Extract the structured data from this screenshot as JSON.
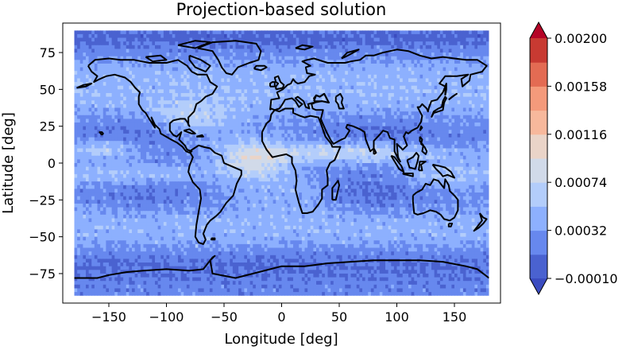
{
  "chart_data": {
    "type": "heatmap",
    "title": "Projection-based solution",
    "xlabel": "Longitude [deg]",
    "ylabel": "Latitude [deg]",
    "xlim": [
      -190,
      190
    ],
    "ylim": [
      -95,
      95
    ],
    "xticks": [
      -150,
      -100,
      -50,
      0,
      50,
      100,
      150
    ],
    "yticks": [
      -75,
      -50,
      -25,
      0,
      25,
      50,
      75
    ],
    "xtick_labels": [
      "−150",
      "−100",
      "−50",
      "0",
      "50",
      "100",
      "150"
    ],
    "ytick_labels": [
      "−75",
      "−50",
      "−25",
      "0",
      "25",
      "50",
      "75"
    ],
    "data_extent": {
      "lon": [
        -180,
        180
      ],
      "lat": [
        -90,
        90
      ]
    },
    "grid": false,
    "colormap": "coolwarm",
    "colorbar": {
      "levels": [
        -0.0001,
        0.00011,
        0.00032,
        0.00053,
        0.00074,
        0.00095,
        0.00116,
        0.00137,
        0.00158,
        0.00179,
        0.002
      ],
      "tick_values": [
        -0.0001,
        0.00032,
        0.00074,
        0.00116,
        0.00158,
        0.002
      ],
      "tick_labels": [
        "−0.00010",
        "0.00032",
        "0.00074",
        "0.00116",
        "0.00158",
        "0.00200"
      ],
      "colors": [
        "#4a62d0",
        "#6788ee",
        "#8db0fe",
        "#b3cdfb",
        "#d1dae9",
        "#ead4c8",
        "#f7b89c",
        "#f49a7b",
        "#e36b53",
        "#c83a32"
      ],
      "under_color": "#3b4cc0",
      "over_color": "#b40426",
      "extend": "both"
    }
  }
}
